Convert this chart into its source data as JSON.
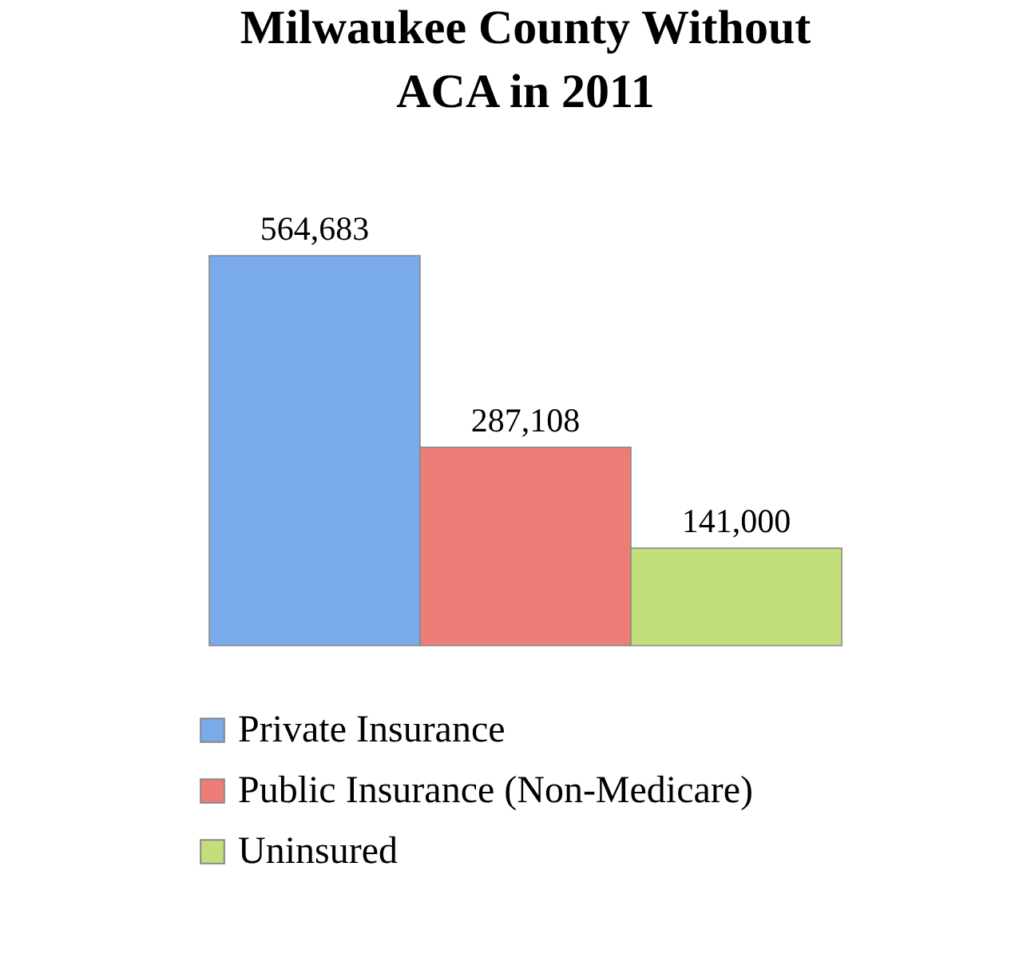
{
  "chart_data": {
    "type": "bar",
    "title": "Milwaukee County Without ACA in 2011",
    "categories": [
      null
    ],
    "series": [
      {
        "name": "Private Insurance",
        "color": "#79aaea",
        "values": [
          564683
        ],
        "value_labels": [
          "564,683"
        ]
      },
      {
        "name": "Public Insurance (Non-Medicare)",
        "color": "#ee7d78",
        "values": [
          287108
        ],
        "value_labels": [
          "287,108"
        ]
      },
      {
        "name": "Uninsured",
        "color": "#c2df7c",
        "values": [
          141000
        ],
        "value_labels": [
          "141,000"
        ]
      }
    ],
    "legend": "bottom"
  }
}
